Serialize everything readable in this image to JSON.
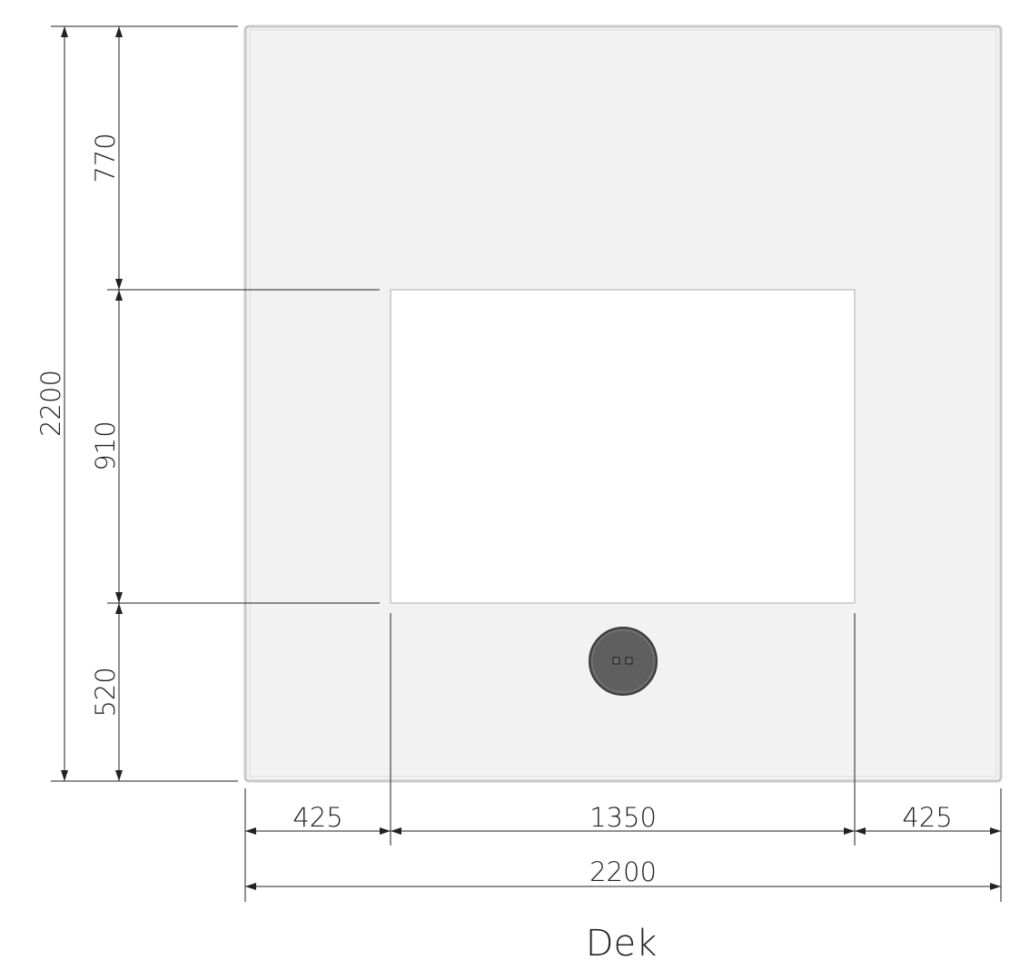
{
  "caption": "Dek",
  "colors": {
    "panel_fill": "#f2f2f2",
    "panel_edge": "#c8c8c8",
    "opening_fill": "#ffffff",
    "opening_edge": "#c4c4c4",
    "knob_fill": "#5f5f5f",
    "knob_edge": "#3a3a3a",
    "line": "#222222"
  },
  "dimensions": {
    "vertical": {
      "total": "2200",
      "top": "770",
      "opening": "910",
      "bottom": "520"
    },
    "horizontal": {
      "left": "425",
      "opening": "1350",
      "right": "425",
      "total": "2200"
    }
  },
  "components": {
    "panel": "panel",
    "opening": "opening",
    "knob": "knob"
  }
}
